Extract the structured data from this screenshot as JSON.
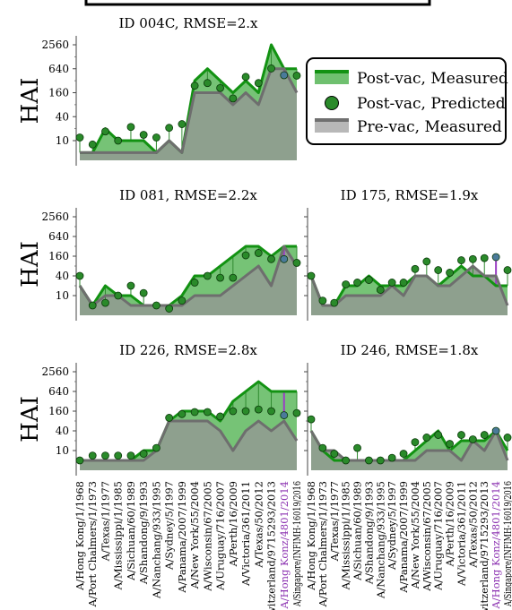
{
  "chart_data": {
    "type": "area",
    "ylabel": "HAI",
    "y_ticks": [
      10,
      40,
      160,
      640,
      2560
    ],
    "y_scale": "log",
    "strains": [
      "A/Hong Kong/1/1968",
      "A/Port Chalmers/1/1973",
      "A/Texas/1/1977",
      "A/Mississippi/1/1985",
      "A/Sichuan/60/1989",
      "A/Shandong/9/1993",
      "A/Nanchang/933/1995",
      "A/Sydney/5/1997",
      "A/Panama/2007/1999",
      "A/New York/55/2004",
      "A/Wisconsin/67/2005",
      "A/Uruguay/716/2007",
      "A/Perth/16/2009",
      "A/Victoria/361/2011",
      "A/Texas/50/2012",
      "A/Switzerland/9715293/2013",
      "A/Hong Konz/4801/2014",
      "A/Singapore/INFIMH-16019/2016"
    ],
    "highlight_strain": "A/Hong Konz/4801/2014",
    "legend": {
      "post_measured": "Post-vac, Measured",
      "post_predicted": "Post-vac, Predicted",
      "pre_measured": "Pre-vac, Measured"
    },
    "panels": [
      {
        "title": "ID 004C, RMSE=2.x",
        "post": [
          5,
          5,
          20,
          10,
          10,
          10,
          5,
          10,
          5,
          320,
          640,
          320,
          160,
          320,
          160,
          2560,
          640,
          640
        ],
        "pre": [
          5,
          5,
          5,
          5,
          5,
          5,
          5,
          10,
          5,
          160,
          160,
          160,
          80,
          160,
          80,
          640,
          640,
          160
        ],
        "pred": [
          12,
          8,
          17,
          10,
          22,
          14,
          12,
          21,
          26,
          240,
          280,
          210,
          115,
          400,
          280,
          650,
          440,
          430
        ]
      },
      {
        "title": "ID 081, RMSE=2.2x",
        "post": [
          20,
          5,
          20,
          10,
          10,
          5,
          5,
          5,
          10,
          40,
          40,
          80,
          160,
          320,
          320,
          160,
          320,
          320
        ],
        "pre": [
          20,
          5,
          10,
          10,
          5,
          5,
          5,
          5,
          5,
          10,
          10,
          10,
          20,
          40,
          80,
          20,
          320,
          80
        ],
        "pred": [
          40,
          5,
          6,
          10,
          20,
          12,
          5,
          4,
          7,
          25,
          40,
          35,
          35,
          170,
          200,
          130,
          130,
          100
        ]
      },
      {
        "title": "ID 175, RMSE=1.9x",
        "post": [
          40,
          5,
          5,
          20,
          20,
          40,
          20,
          20,
          20,
          40,
          40,
          20,
          40,
          80,
          40,
          40,
          20,
          20
        ],
        "pre": [
          40,
          5,
          5,
          10,
          10,
          10,
          10,
          20,
          10,
          40,
          40,
          20,
          20,
          40,
          80,
          40,
          40,
          5
        ],
        "pred": [
          40,
          7,
          6,
          22,
          25,
          30,
          15,
          25,
          25,
          65,
          110,
          60,
          50,
          120,
          130,
          140,
          150,
          60
        ]
      },
      {
        "title": "ID 226, RMSE=2.8x",
        "post": [
          5,
          5,
          5,
          5,
          5,
          10,
          10,
          80,
          160,
          160,
          160,
          80,
          320,
          640,
          1280,
          640,
          640,
          640
        ],
        "pre": [
          5,
          5,
          5,
          5,
          5,
          5,
          10,
          80,
          80,
          80,
          80,
          40,
          10,
          40,
          80,
          40,
          80,
          20
        ],
        "pred": [
          5,
          7,
          7,
          7,
          7,
          8,
          12,
          100,
          130,
          150,
          150,
          110,
          160,
          160,
          180,
          160,
          120,
          140
        ]
      },
      {
        "title": "ID 246, RMSE=1.8x",
        "post": [
          40,
          10,
          5,
          5,
          5,
          5,
          5,
          5,
          5,
          10,
          20,
          40,
          10,
          20,
          20,
          20,
          40,
          10
        ],
        "pre": [
          40,
          10,
          10,
          5,
          5,
          5,
          5,
          5,
          5,
          5,
          10,
          10,
          10,
          5,
          20,
          10,
          40,
          5
        ],
        "pred": [
          90,
          12,
          8,
          5,
          12,
          5,
          5,
          6,
          8,
          18,
          25,
          30,
          16,
          30,
          22,
          30,
          40,
          25
        ]
      }
    ]
  }
}
